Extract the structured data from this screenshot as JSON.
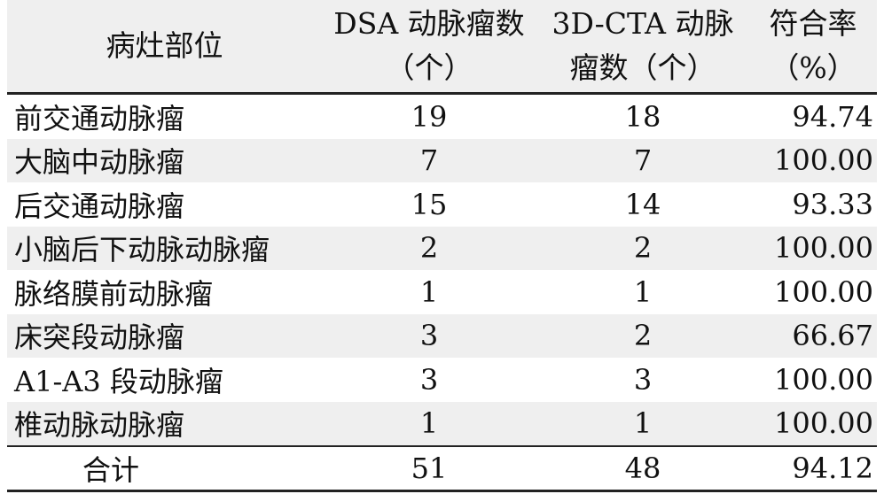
{
  "header": {
    "col0": "病灶部位",
    "col1_line1": "DSA 动脉瘤数",
    "col1_line2": "（个）",
    "col2_line1": "3D-CTA 动脉",
    "col2_line2": "瘤数（个）",
    "col3_line1": "符合率",
    "col3_line2": "（%）"
  },
  "rows": [
    {
      "site": "前交通动脉瘤",
      "dsa": "19",
      "cta": "18",
      "rate": "94.74"
    },
    {
      "site": "大脑中动脉瘤",
      "dsa": "7",
      "cta": "7",
      "rate": "100.00"
    },
    {
      "site": "后交通动脉瘤",
      "dsa": "15",
      "cta": "14",
      "rate": "93.33"
    },
    {
      "site": "小脑后下动脉动脉瘤",
      "dsa": "2",
      "cta": "2",
      "rate": "100.00"
    },
    {
      "site": "脉络膜前动脉瘤",
      "dsa": "1",
      "cta": "1",
      "rate": "100.00"
    },
    {
      "site": "床突段动脉瘤",
      "dsa": "3",
      "cta": "2",
      "rate": "66.67"
    },
    {
      "site": "A1-A3 段动脉瘤",
      "dsa": "3",
      "cta": "3",
      "rate": "100.00"
    },
    {
      "site": "椎动脉动脉瘤",
      "dsa": "1",
      "cta": "1",
      "rate": "100.00"
    }
  ],
  "total": {
    "site": "合计",
    "dsa": "51",
    "cta": "48",
    "rate": "94.12"
  }
}
